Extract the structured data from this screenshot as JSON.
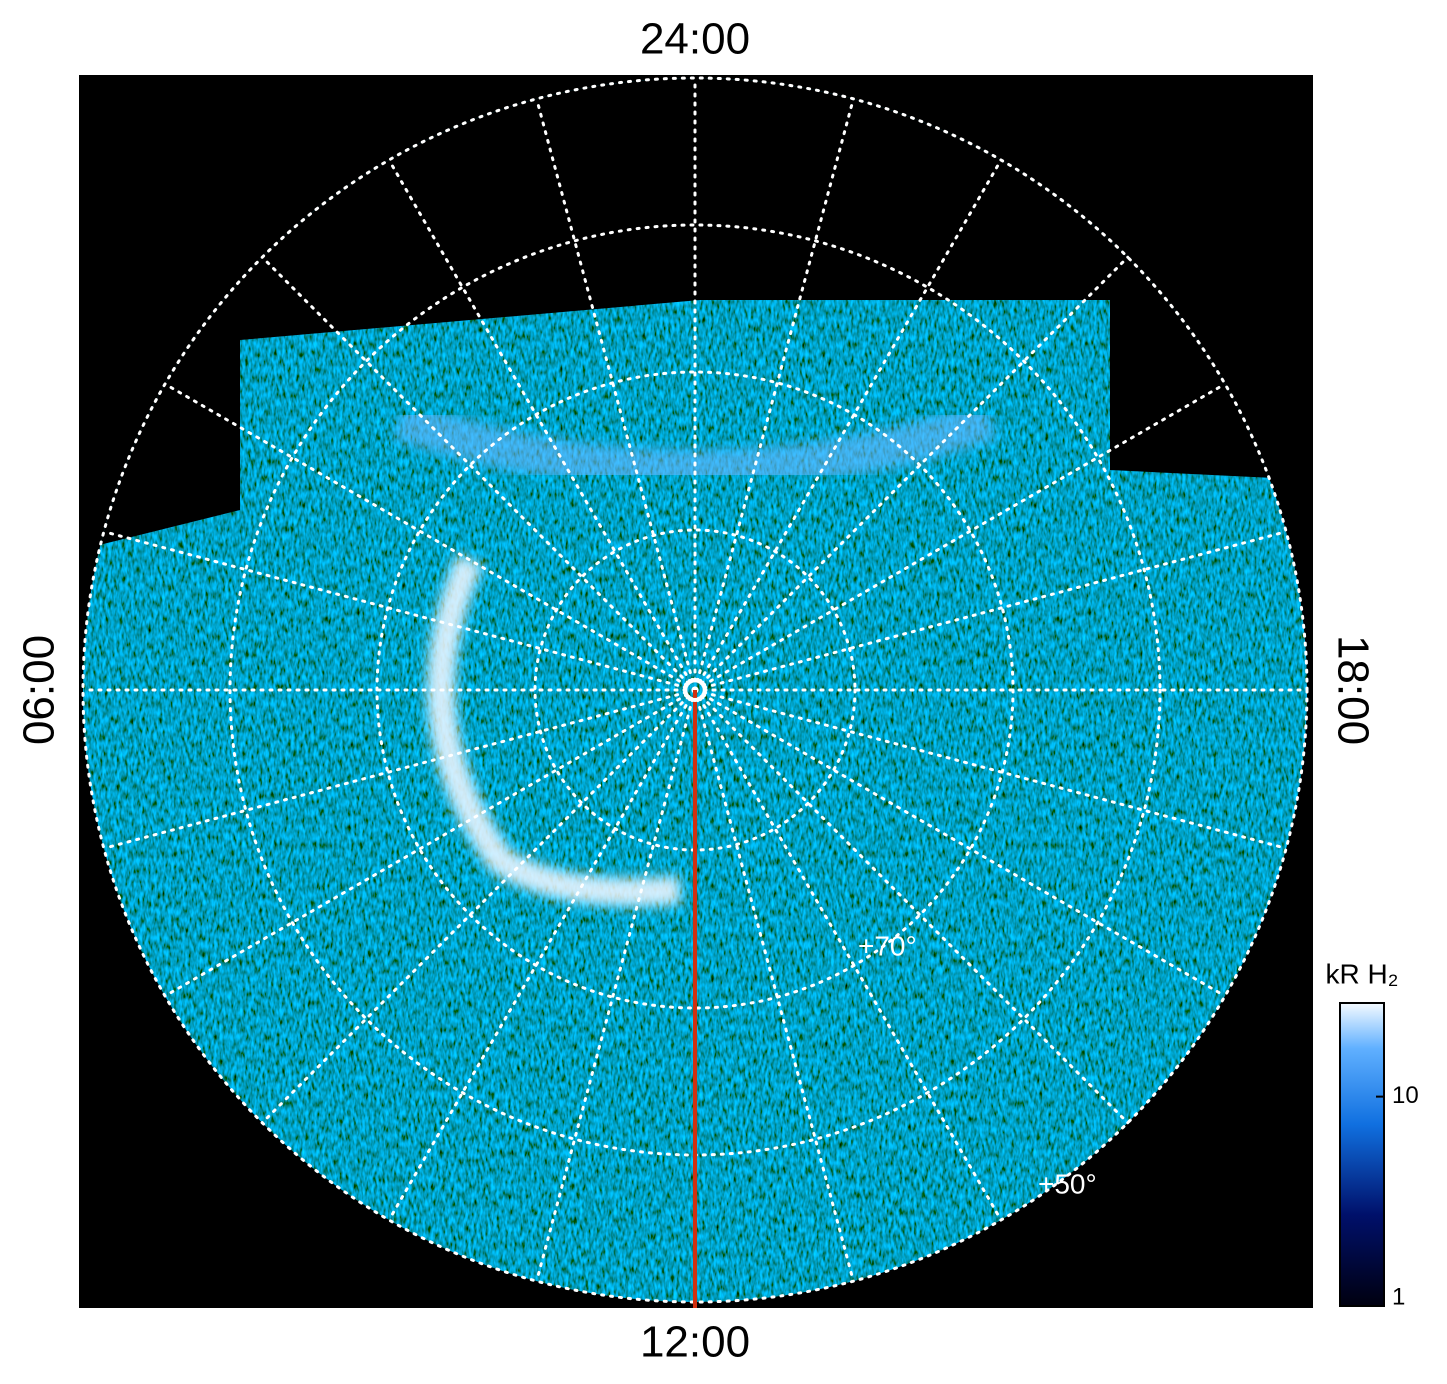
{
  "labels": {
    "top": "24:00",
    "left": "06:00",
    "right": "18:00",
    "bottom": "12:00"
  },
  "latitude_labels": [
    "+70°",
    "+50°"
  ],
  "colorbar": {
    "label": "kR H₂",
    "lim": [
      1,
      28
    ],
    "ticks": [
      1,
      10
    ],
    "log": true
  }
}
